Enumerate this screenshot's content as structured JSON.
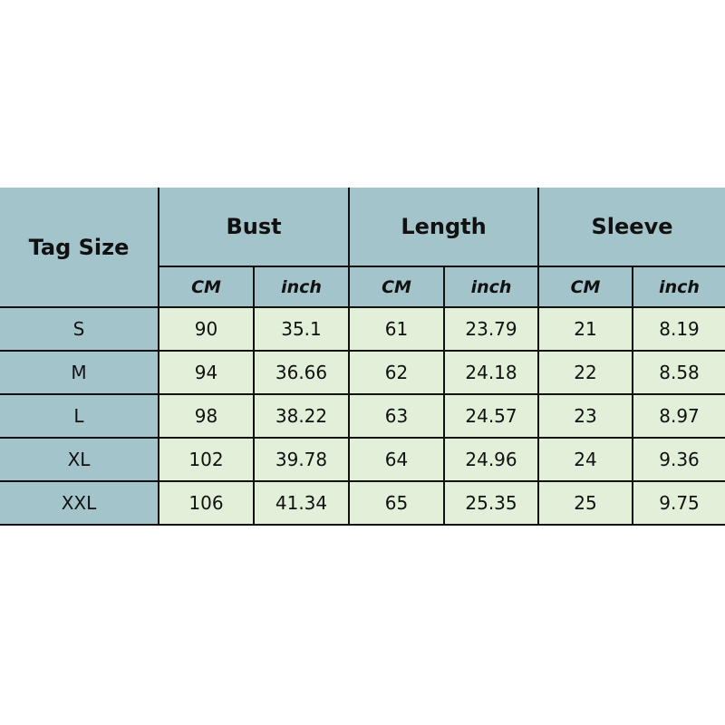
{
  "table": {
    "corner": "Tag Size",
    "groups": [
      "Bust",
      "Length",
      "Sleeve"
    ],
    "units": [
      "CM",
      "inch",
      "CM",
      "inch",
      "CM",
      "inch"
    ],
    "rows": [
      {
        "size": "S",
        "values": [
          "90",
          "35.1",
          "61",
          "23.79",
          "21",
          "8.19"
        ]
      },
      {
        "size": "M",
        "values": [
          "94",
          "36.66",
          "62",
          "24.18",
          "22",
          "8.58"
        ]
      },
      {
        "size": "L",
        "values": [
          "98",
          "38.22",
          "63",
          "24.57",
          "23",
          "8.97"
        ]
      },
      {
        "size": "XL",
        "values": [
          "102",
          "39.78",
          "64",
          "24.96",
          "24",
          "9.36"
        ]
      },
      {
        "size": "XXL",
        "values": [
          "106",
          "41.34",
          "65",
          "25.35",
          "25",
          "9.75"
        ]
      }
    ],
    "colors": {
      "header": "#a4c4cc",
      "cell": "#e2efd9"
    }
  }
}
